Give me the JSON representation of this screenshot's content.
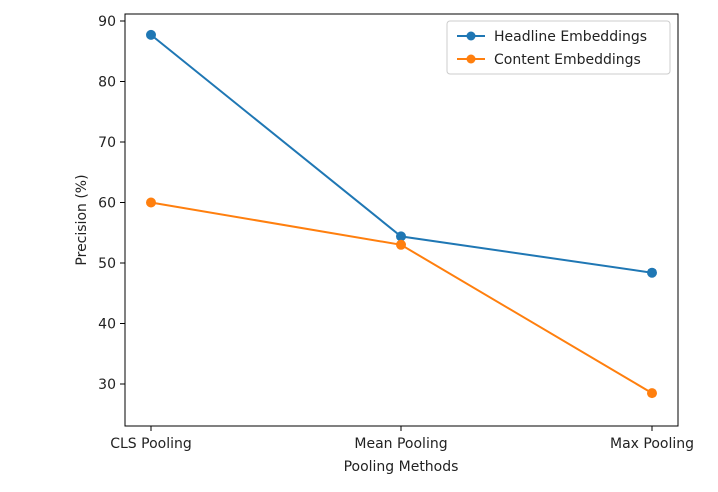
{
  "chart_data": {
    "type": "line",
    "title": "",
    "xlabel": "Pooling Methods",
    "ylabel": "Precision (%)",
    "categories": [
      "CLS Pooling",
      "Mean Pooling",
      "Max Pooling"
    ],
    "yticks": [
      30,
      40,
      50,
      60,
      70,
      80,
      90
    ],
    "ylim": [
      26,
      90.5
    ],
    "grid": false,
    "legend_position": "top-right",
    "series": [
      {
        "name": "Headline Embeddings",
        "color": "#1f77b4",
        "values": [
          87.7,
          54.4,
          48.4
        ]
      },
      {
        "name": "Content Embeddings",
        "color": "#ff7f0e",
        "values": [
          60.0,
          53.0,
          28.5
        ]
      }
    ]
  }
}
